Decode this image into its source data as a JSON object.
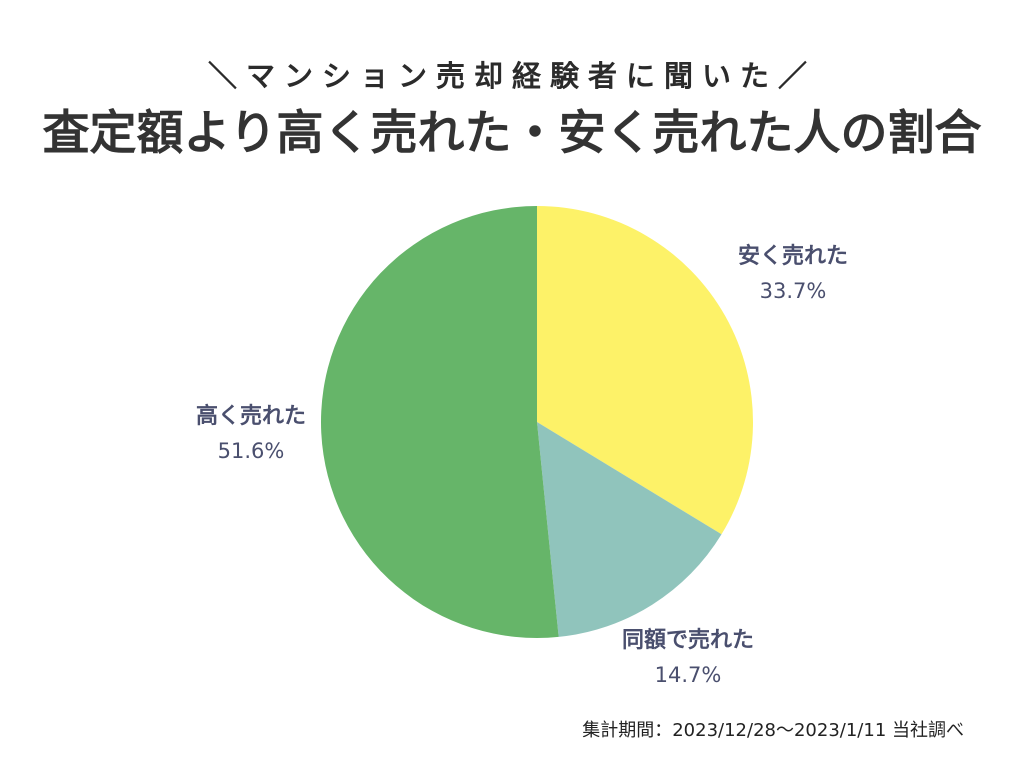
{
  "header": {
    "subtitle": "＼マンション売却経験者に聞いた／",
    "title": "査定額より高く売れた・安く売れた人の割合"
  },
  "chart_data": {
    "type": "pie",
    "slices": [
      {
        "label": "安く売れた",
        "value": 33.7,
        "value_label": "33.7%",
        "color": "#fdf268"
      },
      {
        "label": "同額で売れた",
        "value": 14.7,
        "value_label": "14.7%",
        "color": "#90c4bc"
      },
      {
        "label": "高く売れた",
        "value": 51.6,
        "value_label": "51.6%",
        "color": "#66b569"
      }
    ],
    "start": "top",
    "direction": "clockwise"
  },
  "footnote": "集計期間：2023/12/28〜2023/1/11 当社調べ"
}
